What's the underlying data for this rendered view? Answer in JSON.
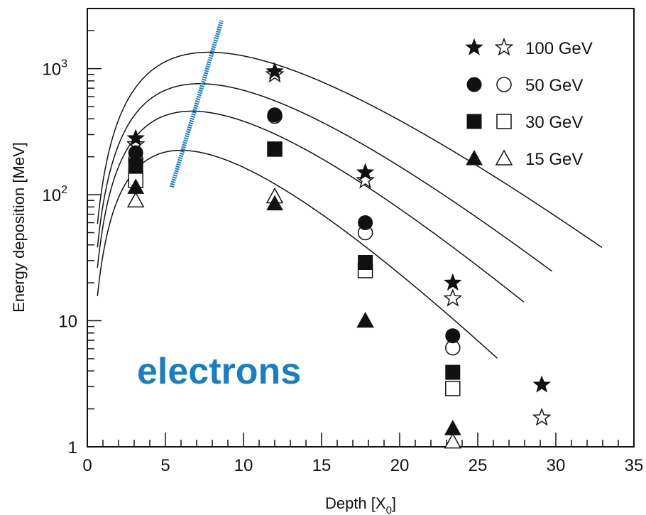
{
  "chart_data": {
    "type": "scatter",
    "xlabel": "Depth [X",
    "xlabel_subscript": "0",
    "xlabel_close": "]",
    "ylabel": "Energy deposition [MeV]",
    "xlim": [
      0,
      35
    ],
    "ylim": [
      1,
      3000
    ],
    "yscale": "log",
    "grid": false,
    "legend_position": "top-right",
    "x_ticks": [
      "0",
      "5",
      "10",
      "15",
      "20",
      "25",
      "30",
      "35"
    ],
    "y_ticks": [
      {
        "value": 1,
        "label": "1",
        "exponent": ""
      },
      {
        "value": 10,
        "label": "10",
        "exponent": ""
      },
      {
        "value": 100,
        "label": "10",
        "exponent": "2"
      },
      {
        "value": 1000,
        "label": "10",
        "exponent": "3"
      }
    ],
    "annotation": {
      "text": "electrons",
      "color": "#1a7ec2"
    },
    "shower_max_line": {
      "color": "#1a7ec2",
      "x": [
        5.4,
        8.6
      ],
      "y": [
        115,
        2400
      ]
    },
    "series": [
      {
        "name": "100 GeV",
        "filled_marker": "star",
        "open_marker": "star-open",
        "x": [
          3.1,
          12.0,
          17.8,
          23.4,
          29.1
        ],
        "y_filled": [
          280,
          950,
          150,
          20,
          3.1
        ],
        "y_open": [
          250,
          900,
          130,
          15,
          1.7
        ],
        "curve": {
          "peak_x": 7.8,
          "peak_y": 1350,
          "start_x": 0.65,
          "end_x": 33
        }
      },
      {
        "name": "50 GeV",
        "filled_marker": "circle",
        "open_marker": "circle-open",
        "x": [
          3.1,
          12.0,
          17.8,
          23.4
        ],
        "y_filled": [
          215,
          430,
          60,
          7.6
        ],
        "y_open": [
          190,
          420,
          50,
          6.1
        ],
        "curve": {
          "peak_x": 7.2,
          "peak_y": 760,
          "start_x": 0.65,
          "end_x": 29.8
        }
      },
      {
        "name": "30 GeV",
        "filled_marker": "square",
        "open_marker": "square-open",
        "x": [
          3.1,
          12.0,
          17.8,
          23.4
        ],
        "y_filled": [
          170,
          230,
          29,
          3.9
        ],
        "y_open": [
          130,
          230,
          25,
          2.9
        ],
        "curve": {
          "peak_x": 6.7,
          "peak_y": 460,
          "start_x": 0.65,
          "end_x": 28.0
        }
      },
      {
        "name": "15 GeV",
        "filled_marker": "triangle",
        "open_marker": "triangle-open",
        "x": [
          3.1,
          12.0,
          17.8,
          23.4
        ],
        "y_filled": [
          115,
          85,
          10,
          1.4
        ],
        "y_open": [
          90,
          97,
          10,
          1.1
        ],
        "curve": {
          "peak_x": 6.0,
          "peak_y": 225,
          "start_x": 0.65,
          "end_x": 26.3
        }
      }
    ]
  }
}
